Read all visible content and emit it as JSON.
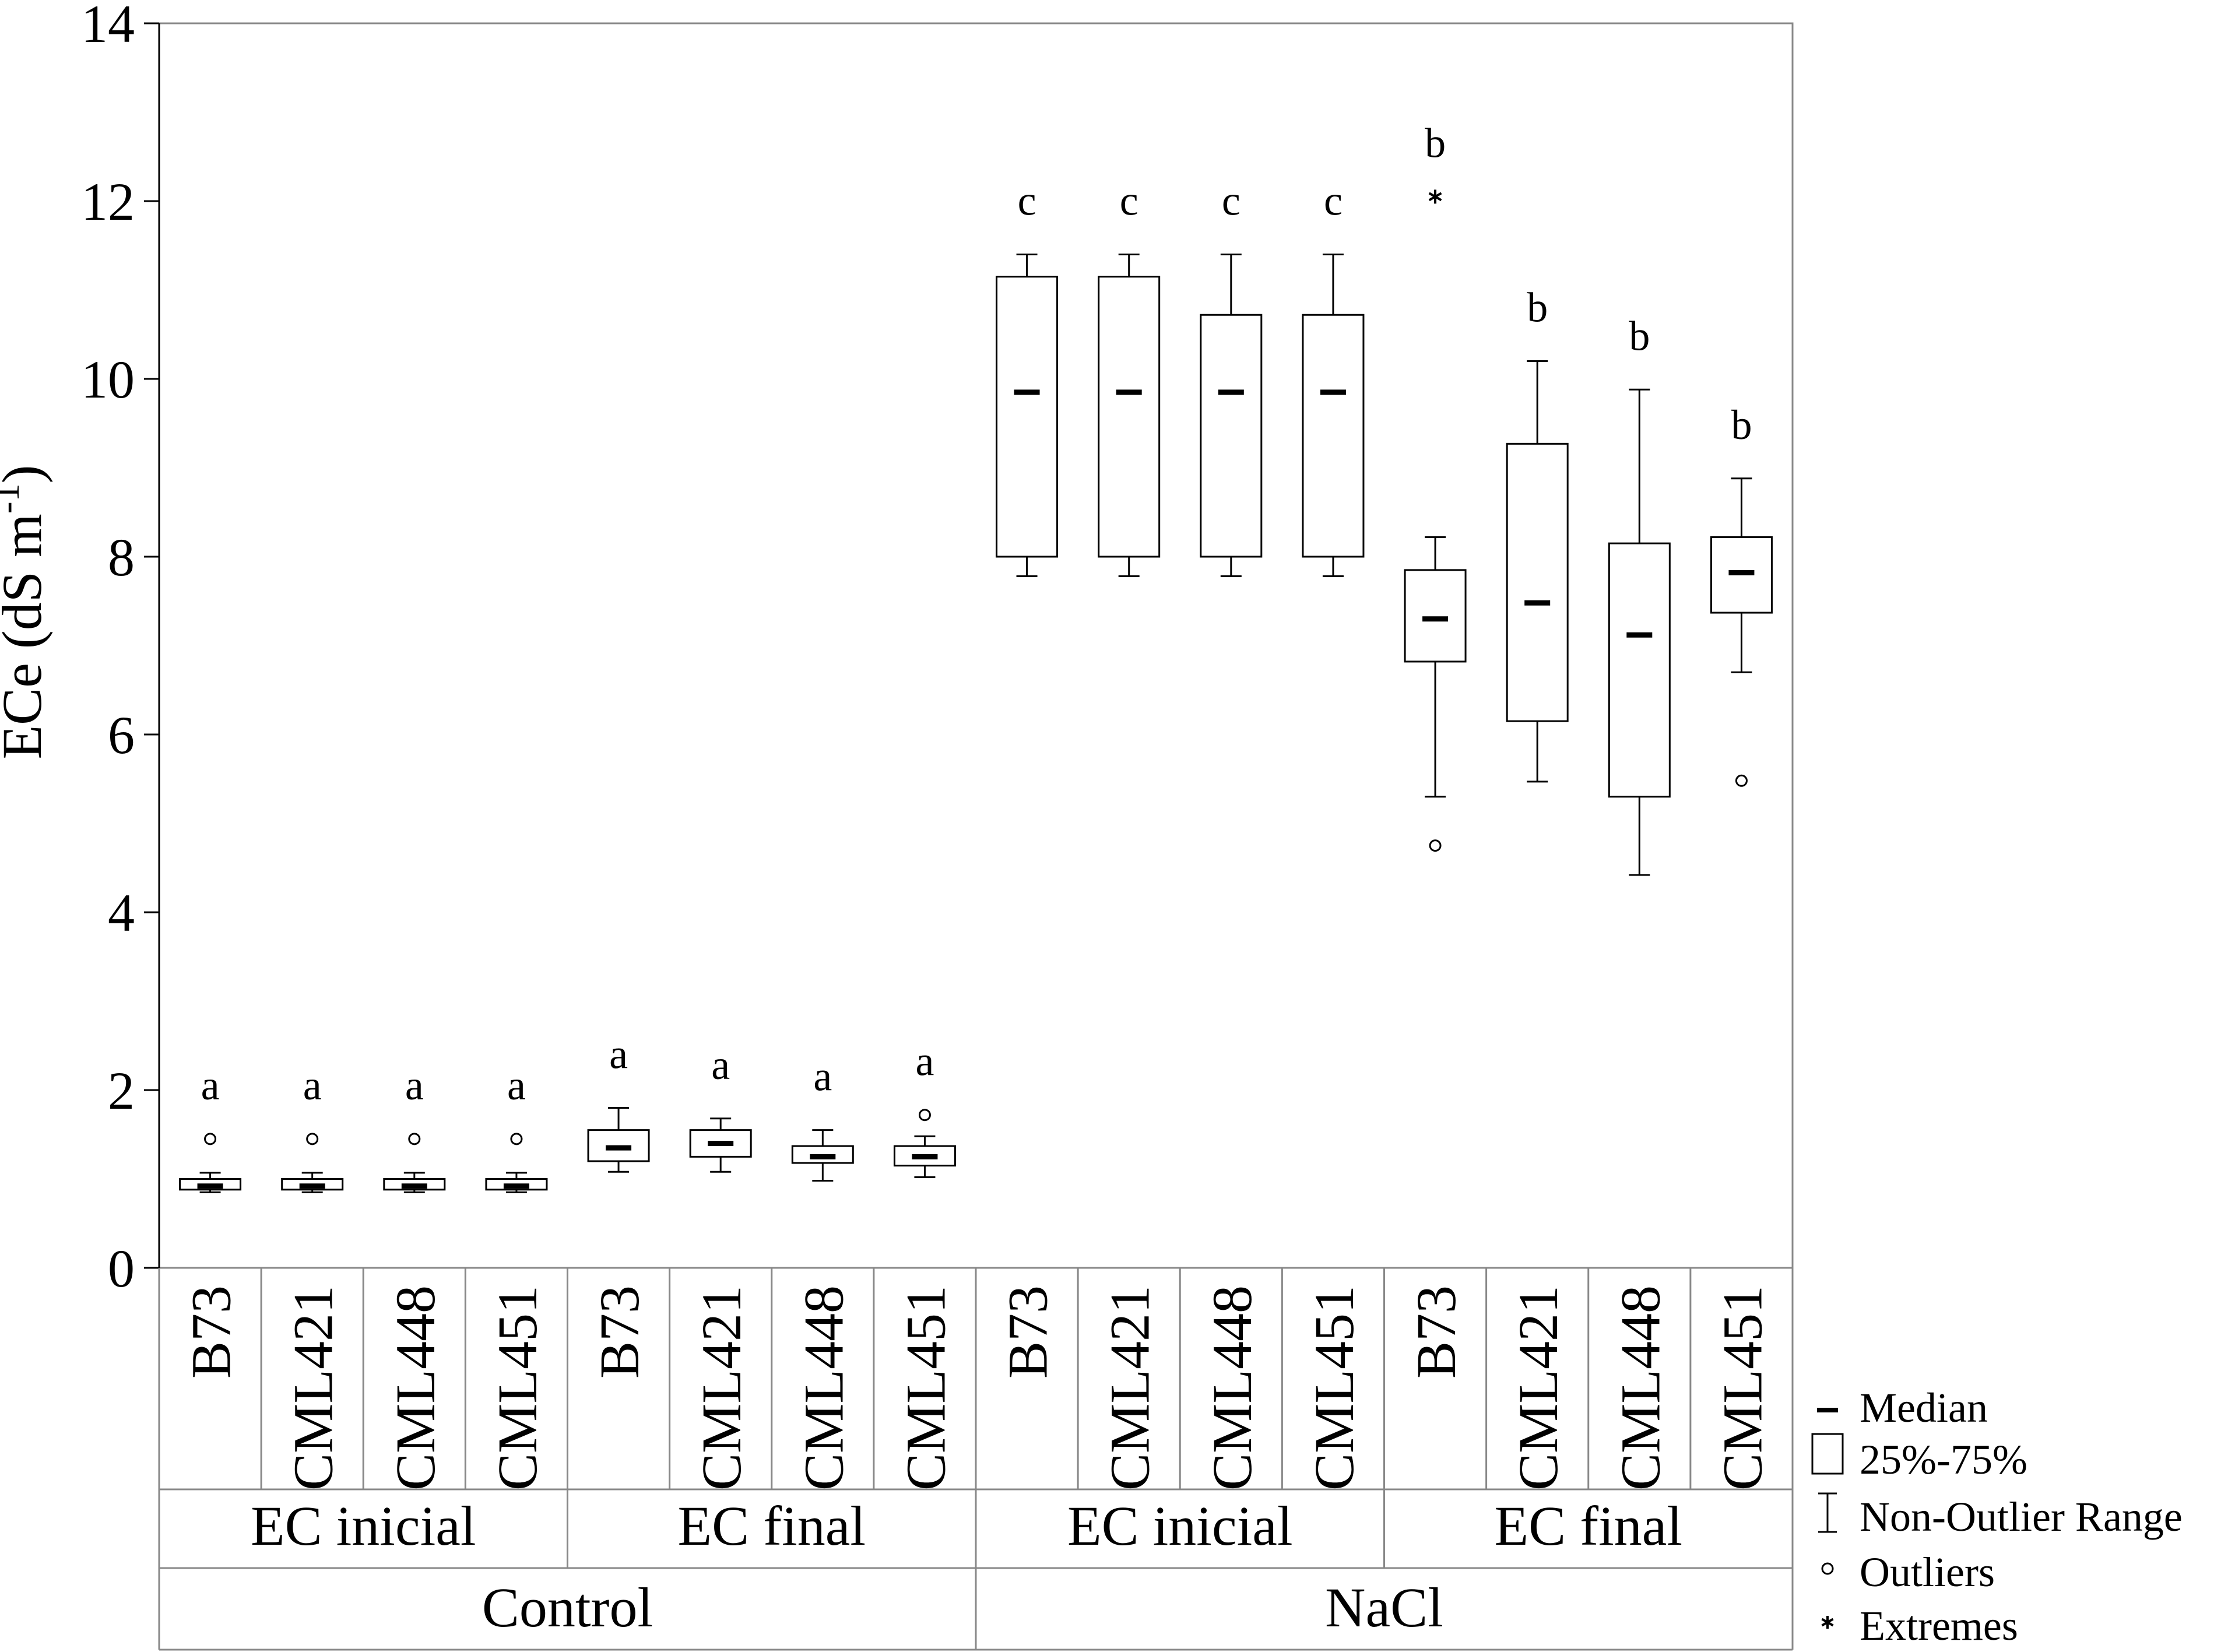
{
  "chart_data": {
    "type": "boxplot",
    "ylabel": "ECe (dS m",
    "ylabel_sup": "-1",
    "ylabel_close": ")",
    "ylim": [
      0,
      14
    ],
    "yticks": [
      "0",
      "2",
      "4",
      "6",
      "8",
      "10",
      "12",
      "14"
    ],
    "grid": false,
    "categories": [
      "B73",
      "CML421",
      "CML448",
      "CML451",
      "B73",
      "CML421",
      "CML448",
      "CML451",
      "B73",
      "CML421",
      "CML448",
      "CML451",
      "B73",
      "CML421",
      "CML448",
      "CML451"
    ],
    "groups_level2": [
      "EC inicial",
      "EC final",
      "EC inicial",
      "EC final"
    ],
    "groups_level1": [
      "Control",
      "NaCl"
    ],
    "boxes": [
      {
        "whisker_low": 0.85,
        "q1": 0.88,
        "median": 0.92,
        "q3": 1.0,
        "whisker_high": 1.07,
        "outliers": [
          1.45
        ],
        "extremes": [],
        "letter": "a"
      },
      {
        "whisker_low": 0.85,
        "q1": 0.88,
        "median": 0.92,
        "q3": 1.0,
        "whisker_high": 1.07,
        "outliers": [
          1.45
        ],
        "extremes": [],
        "letter": "a"
      },
      {
        "whisker_low": 0.85,
        "q1": 0.88,
        "median": 0.92,
        "q3": 1.0,
        "whisker_high": 1.07,
        "outliers": [
          1.45
        ],
        "extremes": [],
        "letter": "a"
      },
      {
        "whisker_low": 0.85,
        "q1": 0.88,
        "median": 0.92,
        "q3": 1.0,
        "whisker_high": 1.07,
        "outliers": [
          1.45
        ],
        "extremes": [],
        "letter": "a"
      },
      {
        "whisker_low": 1.08,
        "q1": 1.2,
        "median": 1.35,
        "q3": 1.55,
        "whisker_high": 1.8,
        "outliers": [],
        "extremes": [],
        "letter": "a"
      },
      {
        "whisker_low": 1.08,
        "q1": 1.25,
        "median": 1.4,
        "q3": 1.55,
        "whisker_high": 1.68,
        "outliers": [],
        "extremes": [],
        "letter": "a"
      },
      {
        "whisker_low": 0.98,
        "q1": 1.18,
        "median": 1.25,
        "q3": 1.37,
        "whisker_high": 1.55,
        "outliers": [],
        "extremes": [],
        "letter": "a"
      },
      {
        "whisker_low": 1.02,
        "q1": 1.15,
        "median": 1.25,
        "q3": 1.37,
        "whisker_high": 1.48,
        "outliers": [
          1.72
        ],
        "extremes": [],
        "letter": "a"
      },
      {
        "whisker_low": 7.78,
        "q1": 8.0,
        "median": 9.85,
        "q3": 11.15,
        "whisker_high": 11.4,
        "outliers": [],
        "extremes": [],
        "letter": "c"
      },
      {
        "whisker_low": 7.78,
        "q1": 8.0,
        "median": 9.85,
        "q3": 11.15,
        "whisker_high": 11.4,
        "outliers": [],
        "extremes": [],
        "letter": "c"
      },
      {
        "whisker_low": 7.78,
        "q1": 8.0,
        "median": 9.85,
        "q3": 10.72,
        "whisker_high": 11.4,
        "outliers": [],
        "extremes": [],
        "letter": "c"
      },
      {
        "whisker_low": 7.78,
        "q1": 8.0,
        "median": 9.85,
        "q3": 10.72,
        "whisker_high": 11.4,
        "outliers": [],
        "extremes": [],
        "letter": "c"
      },
      {
        "whisker_low": 5.3,
        "q1": 6.82,
        "median": 7.3,
        "q3": 7.85,
        "whisker_high": 8.22,
        "outliers": [
          4.75
        ],
        "extremes": [
          12.05
        ],
        "letter": "b"
      },
      {
        "whisker_low": 5.47,
        "q1": 6.15,
        "median": 7.48,
        "q3": 9.27,
        "whisker_high": 10.2,
        "outliers": [],
        "extremes": [],
        "letter": "b"
      },
      {
        "whisker_low": 4.42,
        "q1": 5.3,
        "median": 7.12,
        "q3": 8.15,
        "whisker_high": 9.88,
        "outliers": [],
        "extremes": [],
        "letter": "b"
      },
      {
        "whisker_low": 6.7,
        "q1": 7.37,
        "median": 7.82,
        "q3": 8.22,
        "whisker_high": 8.88,
        "outliers": [
          5.48
        ],
        "extremes": [],
        "letter": "b"
      }
    ],
    "legend_placement": "bottom-right",
    "legend": [
      {
        "symbol": "median",
        "label": "Median"
      },
      {
        "symbol": "box",
        "label": "25%-75%"
      },
      {
        "symbol": "whisker",
        "label": "Non-Outlier Range"
      },
      {
        "symbol": "outlier",
        "label": "Outliers"
      },
      {
        "symbol": "extreme",
        "label": "Extremes"
      }
    ],
    "colors": {
      "line": "#000000",
      "frame": "#888888",
      "background": "#ffffff"
    }
  }
}
